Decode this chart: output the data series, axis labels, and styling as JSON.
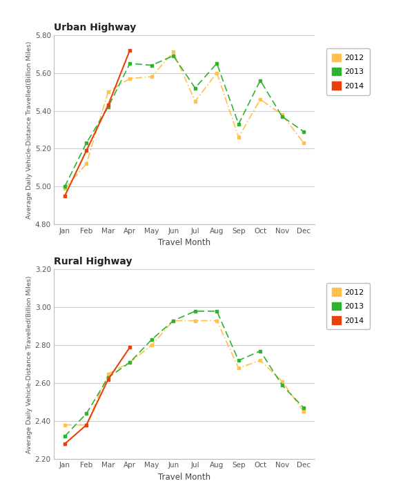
{
  "months": [
    "Jan",
    "Feb",
    "Mar",
    "Apr",
    "May",
    "Jun",
    "Jul",
    "Aug",
    "Sep",
    "Oct",
    "Nov",
    "Dec"
  ],
  "urban": {
    "2012": [
      4.99,
      5.12,
      5.5,
      5.57,
      5.58,
      5.71,
      5.45,
      5.6,
      5.26,
      5.46,
      5.38,
      5.23
    ],
    "2013": [
      5.0,
      5.23,
      5.42,
      5.65,
      5.64,
      5.69,
      5.52,
      5.65,
      5.33,
      5.56,
      5.37,
      5.29
    ],
    "2014": [
      4.95,
      5.19,
      5.43,
      5.72,
      null,
      null,
      null,
      null,
      null,
      null,
      null,
      null
    ]
  },
  "rural": {
    "2012": [
      2.38,
      2.38,
      2.65,
      2.71,
      2.8,
      2.93,
      2.93,
      2.93,
      2.68,
      2.72,
      2.61,
      2.45
    ],
    "2013": [
      2.32,
      2.44,
      2.63,
      2.71,
      2.83,
      2.93,
      2.98,
      2.98,
      2.72,
      2.77,
      2.59,
      2.47
    ],
    "2014": [
      2.28,
      2.38,
      2.62,
      2.79,
      null,
      null,
      null,
      null,
      null,
      null,
      null,
      null
    ]
  },
  "colors": {
    "2012": "#FFC04C",
    "2013": "#2DB32D",
    "2014": "#E8400A"
  },
  "urban_ylim": [
    4.8,
    5.8
  ],
  "urban_yticks": [
    4.8,
    5.0,
    5.2,
    5.4,
    5.6,
    5.8
  ],
  "rural_ylim": [
    2.2,
    3.2
  ],
  "rural_yticks": [
    2.2,
    2.4,
    2.6,
    2.8,
    3.0,
    3.2
  ],
  "ylabel": "Average Daily Vehicle-Distance Travelled(Billion Miles)",
  "xlabel": "Travel Month",
  "urban_title": "Urban Highway",
  "rural_title": "Rural Highway"
}
